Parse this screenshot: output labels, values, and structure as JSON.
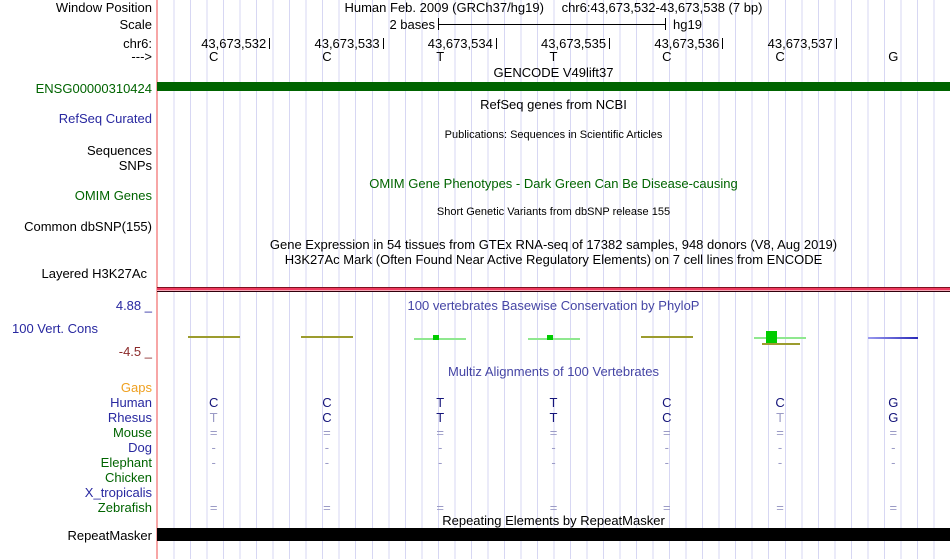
{
  "palette": {
    "track_green": "#006400",
    "label_navy": "#2828a0",
    "title_slate_blue": "#4545a5",
    "min_maroon": "#8b2a2a",
    "gaps_orange": "#efa020",
    "letter_dark_navy": "#14147a",
    "letter_light": "#9b9bc6",
    "grid_line": "#d7d7f3",
    "guideline_pink": "#f7a6a6",
    "gencode_bar": "#006400",
    "repeat_bar": "#000000",
    "h3k27ac_band_red": "#ee3a5e",
    "phylop_olive": "#9c9c2e",
    "phylop_light_green": "#8fe88f",
    "phylop_bright_green": "#00cc00",
    "phylop_blue": "#2828b8"
  },
  "header": {
    "assembly": "Human Feb. 2009 (GRCh37/hg19)",
    "position": "chr6:43,673,532-43,673,538 (7 bp)",
    "window_position_label": "Window Position",
    "scale_label": "Scale",
    "scale_value": "2 bases",
    "scale_genome": "hg19",
    "chrom_label": "chr6:",
    "strand_label": "--->"
  },
  "ruler": {
    "numbers": [
      "43,673,532",
      "43,673,533",
      "43,673,534",
      "43,673,535",
      "43,673,536",
      "43,673,537"
    ]
  },
  "sequence": {
    "bases": [
      "C",
      "C",
      "T",
      "T",
      "C",
      "C",
      "G"
    ]
  },
  "tracks": {
    "gencode": {
      "title": "GENCODE V49lift37",
      "label": "ENSG00000310424"
    },
    "refseq": {
      "title": "RefSeq genes from NCBI",
      "label": "RefSeq Curated"
    },
    "publications": {
      "title": "Publications: Sequences in Scientific Articles",
      "label_line1": "Sequences",
      "label_line2": "SNPs"
    },
    "omim": {
      "title": "OMIM Gene Phenotypes - Dark Green Can Be Disease-causing",
      "label": "OMIM Genes"
    },
    "dbsnp": {
      "title": "Short Genetic Variants from dbSNP release 155",
      "label": "Common dbSNP(155)"
    },
    "gtex": {
      "title": "Gene Expression in 54 tissues from GTEx RNA-seq of 17382 samples, 948 donors (V8, Aug 2019)"
    },
    "h3k27ac": {
      "title": "H3K27Ac Mark (Often Found Near Active Regulatory Elements) on 7 cell lines from ENCODE",
      "label": "Layered H3K27Ac"
    },
    "phylop": {
      "title": "100 vertebrates Basewise Conservation by PhyloP",
      "label": "100 Vert. Cons",
      "max_value": "4.88 _",
      "min_value": "-4.5 _"
    },
    "multiz": {
      "title": "Multiz Alignments of 100 Vertebrates"
    },
    "repeatmasker": {
      "title": "Repeating Elements by RepeatMasker",
      "label": "RepeatMasker"
    }
  },
  "conservation_marks": [
    {
      "base": 0,
      "shape": "olive_line"
    },
    {
      "base": 1,
      "shape": "olive_line"
    },
    {
      "base": 2,
      "shape": "green_tick"
    },
    {
      "base": 3,
      "shape": "green_tick"
    },
    {
      "base": 4,
      "shape": "olive_line"
    },
    {
      "base": 5,
      "shape": "green_block"
    },
    {
      "base": 6,
      "shape": "blue_line"
    }
  ],
  "alignment": {
    "rows": [
      {
        "label": "Gaps",
        "color": "orange",
        "cells": [
          "",
          "",
          "",
          "",
          "",
          "",
          ""
        ]
      },
      {
        "label": "Human",
        "color": "navy",
        "cells": [
          "C",
          "C",
          "T",
          "T",
          "C",
          "C",
          "G"
        ],
        "light_cols": []
      },
      {
        "label": "Rhesus",
        "color": "navy",
        "cells": [
          "T",
          "C",
          "T",
          "T",
          "C",
          "T",
          "G"
        ],
        "light_cols": [
          0,
          5
        ]
      },
      {
        "label": "Mouse",
        "color": "green",
        "cells": [
          "=",
          "=",
          "=",
          "=",
          "=",
          "=",
          "="
        ]
      },
      {
        "label": "Dog",
        "color": "navy",
        "cells": [
          "-",
          "-",
          "-",
          "-",
          "-",
          "-",
          "-"
        ]
      },
      {
        "label": "Elephant",
        "color": "green",
        "cells": [
          "-",
          "-",
          "-",
          "-",
          "-",
          "-",
          "-"
        ]
      },
      {
        "label": "Chicken",
        "color": "green",
        "cells": [
          "",
          "",
          "",
          "",
          "",
          "",
          ""
        ]
      },
      {
        "label": "X_tropicalis",
        "color": "navy",
        "cells": [
          "",
          "",
          "",
          "",
          "",
          "",
          ""
        ]
      },
      {
        "label": "Zebrafish",
        "color": "green",
        "cells": [
          "=",
          "=",
          "=",
          "=",
          "=",
          "=",
          "="
        ]
      }
    ]
  }
}
